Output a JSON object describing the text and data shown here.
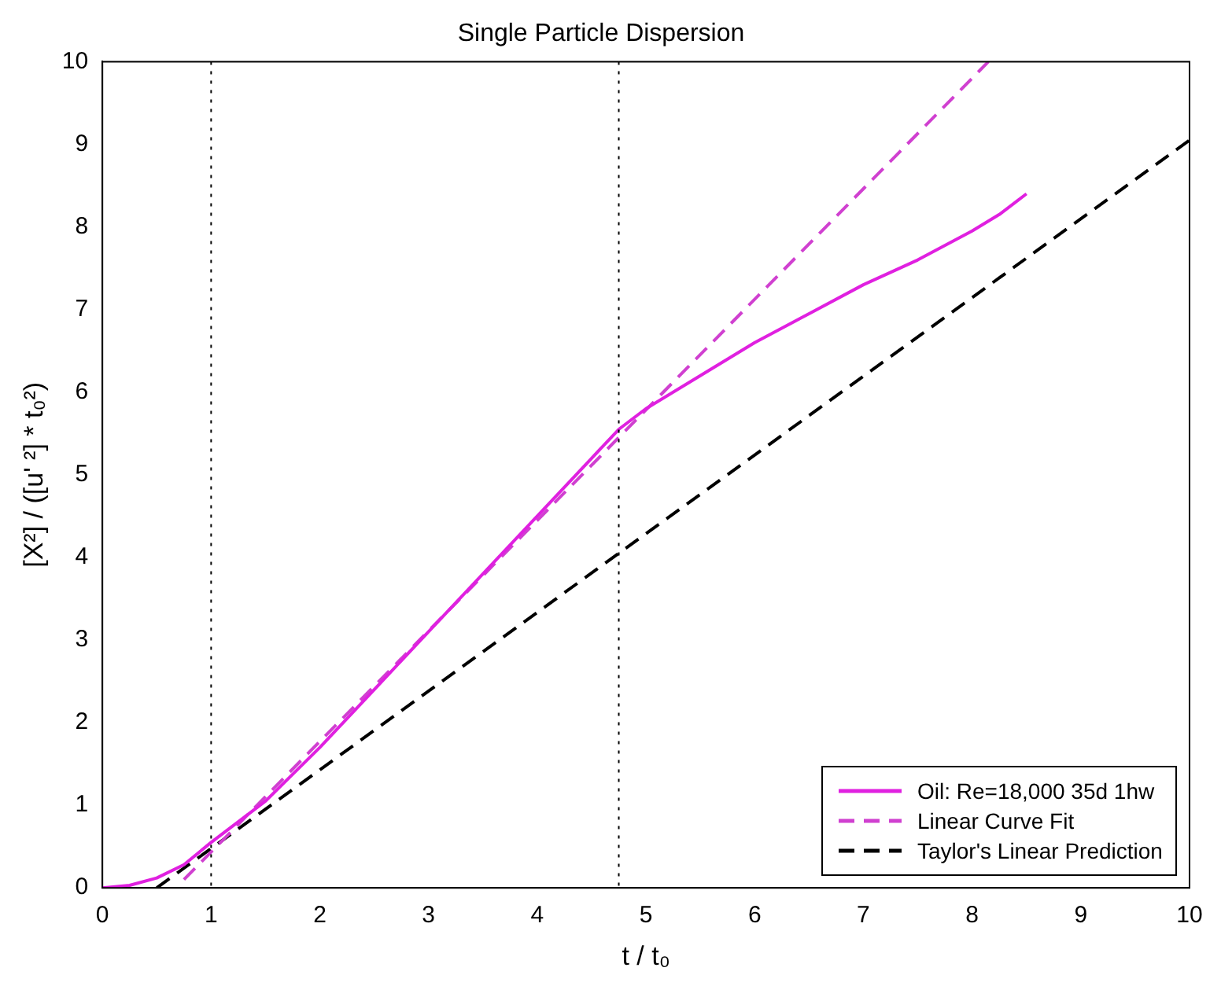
{
  "chart_data": {
    "type": "line",
    "title": "Single Particle Dispersion",
    "xlabel": "t / t₀",
    "ylabel": "[X²] / ([u' ²] * t₀²)",
    "xlim": [
      0,
      10
    ],
    "xticks": [
      0,
      1,
      2,
      3,
      4,
      5,
      6,
      7,
      8,
      9,
      10
    ],
    "ylim": [
      0,
      10
    ],
    "yticks": [
      0,
      1,
      2,
      3,
      4,
      5,
      6,
      7,
      8,
      9,
      10
    ],
    "grid": false,
    "legend": "bottom right",
    "marker": "none",
    "series": [
      {
        "name": "Oil: Re=18,000 35d 1hw",
        "color": "#e020e0",
        "line_style": "solid",
        "x": [
          0,
          0.25,
          0.5,
          0.75,
          1,
          1.25,
          1.5,
          2,
          2.5,
          3,
          3.5,
          4,
          4.5,
          4.75,
          5,
          5.5,
          6,
          6.5,
          7,
          7.5,
          8,
          8.25,
          8.5
        ],
        "values": [
          0,
          0.03,
          0.12,
          0.28,
          0.55,
          0.8,
          1.05,
          1.7,
          2.4,
          3.1,
          3.8,
          4.5,
          5.2,
          5.55,
          5.8,
          6.2,
          6.6,
          6.95,
          7.3,
          7.6,
          7.95,
          8.15,
          8.4
        ]
      },
      {
        "name": "Linear Curve Fit",
        "color": "#d040d0",
        "line_style": "dashed",
        "x": [
          0.75,
          8.15
        ],
        "values": [
          0.1,
          10
        ]
      },
      {
        "name": "Taylor's Linear Prediction",
        "color": "#000000",
        "line_style": "dashed",
        "x": [
          0.5,
          10
        ],
        "values": [
          0,
          9.05
        ]
      }
    ],
    "ref_lines": [
      {
        "axis": "x",
        "value": 1,
        "color": "#000000",
        "line_style": "dotted"
      },
      {
        "axis": "x",
        "value": 4.75,
        "color": "#000000",
        "line_style": "dotted"
      }
    ]
  }
}
